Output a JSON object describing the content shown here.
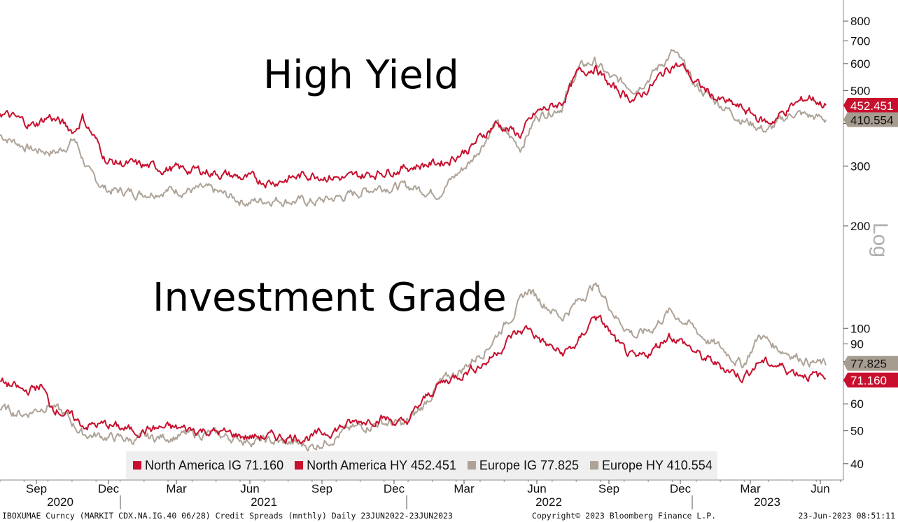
{
  "titles": {
    "hy": "High Yield",
    "ig": "Investment Grade"
  },
  "legend": [
    {
      "label": "North America IG 71.160",
      "color": "#c8102e"
    },
    {
      "label": "North America HY 452.451",
      "color": "#c8102e"
    },
    {
      "label": "Europe IG 77.825",
      "color": "#aea398"
    },
    {
      "label": "Europe HY 410.554",
      "color": "#aea398"
    }
  ],
  "footer": {
    "left": "IBOXUMAE Curncy (MARKIT CDX.NA.IG.40 06/28) Credit Spreads (mnthly)  Daily 23JUN2022-23JUN2023",
    "mid": "Copyright© 2023 Bloomberg Finance L.P.",
    "right": "23-Jun-2023 08:51:11"
  },
  "chart_data": {
    "type": "line",
    "y_scale": "log",
    "ylim": [
      36,
      880
    ],
    "y_axis_label": "Log",
    "y_ticks": [
      40,
      50,
      60,
      70,
      80,
      90,
      100,
      200,
      300,
      400,
      500,
      600,
      700,
      800
    ],
    "y_tick_labels": [
      "40",
      "50",
      "60",
      "",
      "",
      "90",
      "100",
      "200",
      "300",
      "",
      "500",
      "600",
      "700",
      "800"
    ],
    "x_month_ticks": [
      "Sep",
      "Dec",
      "Mar",
      "Jun",
      "Sep",
      "Dec",
      "Mar",
      "Jun",
      "Sep",
      "Dec",
      "Mar",
      "Jun"
    ],
    "x_year_labels": [
      "2020",
      "2021",
      "2022",
      "2023"
    ],
    "last_value_labels": [
      {
        "text": "452.451",
        "value": 452.451,
        "color": "#c8102e"
      },
      {
        "text": "410.554",
        "value": 410.554,
        "color": "#a79c90"
      },
      {
        "text": "77.825",
        "value": 77.825,
        "color": "#a79c90"
      },
      {
        "text": "71.160",
        "value": 71.16,
        "color": "#c8102e"
      }
    ],
    "series": [
      {
        "name": "North America HY",
        "color": "#c8102e",
        "anchors": [
          [
            0,
            430
          ],
          [
            0.04,
            395
          ],
          [
            0.06,
            420
          ],
          [
            0.09,
            380
          ],
          [
            0.1,
            418
          ],
          [
            0.13,
            310
          ],
          [
            0.17,
            300
          ],
          [
            0.2,
            295
          ],
          [
            0.25,
            290
          ],
          [
            0.3,
            275
          ],
          [
            0.33,
            270
          ],
          [
            0.38,
            285
          ],
          [
            0.42,
            275
          ],
          [
            0.46,
            288
          ],
          [
            0.5,
            300
          ],
          [
            0.54,
            310
          ],
          [
            0.57,
            340
          ],
          [
            0.6,
            400
          ],
          [
            0.63,
            370
          ],
          [
            0.65,
            430
          ],
          [
            0.68,
            460
          ],
          [
            0.7,
            560
          ],
          [
            0.72,
            590
          ],
          [
            0.74,
            510
          ],
          [
            0.77,
            470
          ],
          [
            0.79,
            520
          ],
          [
            0.815,
            600
          ],
          [
            0.83,
            580
          ],
          [
            0.84,
            530
          ],
          [
            0.87,
            470
          ],
          [
            0.9,
            440
          ],
          [
            0.93,
            400
          ],
          [
            0.96,
            450
          ],
          [
            0.98,
            480
          ],
          [
            1.0,
            452.451
          ]
        ]
      },
      {
        "name": "Europe HY",
        "color": "#aea398",
        "anchors": [
          [
            0,
            370
          ],
          [
            0.04,
            335
          ],
          [
            0.07,
            330
          ],
          [
            0.09,
            360
          ],
          [
            0.11,
            280
          ],
          [
            0.13,
            255
          ],
          [
            0.17,
            250
          ],
          [
            0.2,
            255
          ],
          [
            0.25,
            255
          ],
          [
            0.3,
            235
          ],
          [
            0.33,
            240
          ],
          [
            0.38,
            235
          ],
          [
            0.42,
            245
          ],
          [
            0.46,
            262
          ],
          [
            0.5,
            260
          ],
          [
            0.53,
            250
          ],
          [
            0.57,
            310
          ],
          [
            0.6,
            400
          ],
          [
            0.63,
            340
          ],
          [
            0.65,
            420
          ],
          [
            0.68,
            450
          ],
          [
            0.7,
            580
          ],
          [
            0.72,
            610
          ],
          [
            0.74,
            540
          ],
          [
            0.77,
            510
          ],
          [
            0.79,
            560
          ],
          [
            0.815,
            650
          ],
          [
            0.83,
            580
          ],
          [
            0.84,
            520
          ],
          [
            0.87,
            460
          ],
          [
            0.9,
            410
          ],
          [
            0.93,
            380
          ],
          [
            0.96,
            430
          ],
          [
            0.98,
            420
          ],
          [
            1.0,
            410.554
          ]
        ]
      },
      {
        "name": "North America IG",
        "color": "#c8102e",
        "anchors": [
          [
            0,
            70
          ],
          [
            0.03,
            65
          ],
          [
            0.05,
            68
          ],
          [
            0.06,
            60
          ],
          [
            0.08,
            56
          ],
          [
            0.1,
            52
          ],
          [
            0.13,
            52
          ],
          [
            0.16,
            50
          ],
          [
            0.2,
            51
          ],
          [
            0.25,
            50
          ],
          [
            0.3,
            48
          ],
          [
            0.35,
            48
          ],
          [
            0.38,
            48
          ],
          [
            0.42,
            52
          ],
          [
            0.46,
            55
          ],
          [
            0.49,
            52
          ],
          [
            0.51,
            60
          ],
          [
            0.53,
            68
          ],
          [
            0.56,
            74
          ],
          [
            0.59,
            80
          ],
          [
            0.62,
            95
          ],
          [
            0.64,
            100
          ],
          [
            0.66,
            90
          ],
          [
            0.68,
            84
          ],
          [
            0.7,
            90
          ],
          [
            0.72,
            110
          ],
          [
            0.735,
            100
          ],
          [
            0.75,
            88
          ],
          [
            0.77,
            80
          ],
          [
            0.79,
            86
          ],
          [
            0.81,
            96
          ],
          [
            0.83,
            90
          ],
          [
            0.85,
            82
          ],
          [
            0.88,
            76
          ],
          [
            0.9,
            72
          ],
          [
            0.92,
            80
          ],
          [
            0.94,
            78
          ],
          [
            0.96,
            75
          ],
          [
            0.98,
            73
          ],
          [
            1.0,
            71.16
          ]
        ]
      },
      {
        "name": "Europe IG",
        "color": "#aea398",
        "anchors": [
          [
            0,
            58
          ],
          [
            0.03,
            56
          ],
          [
            0.06,
            60
          ],
          [
            0.08,
            55
          ],
          [
            0.1,
            49
          ],
          [
            0.13,
            48
          ],
          [
            0.16,
            47
          ],
          [
            0.2,
            48
          ],
          [
            0.25,
            49
          ],
          [
            0.3,
            47
          ],
          [
            0.35,
            46
          ],
          [
            0.38,
            45
          ],
          [
            0.42,
            50
          ],
          [
            0.46,
            53
          ],
          [
            0.49,
            52
          ],
          [
            0.51,
            58
          ],
          [
            0.53,
            68
          ],
          [
            0.56,
            76
          ],
          [
            0.59,
            88
          ],
          [
            0.62,
            110
          ],
          [
            0.64,
            130
          ],
          [
            0.66,
            118
          ],
          [
            0.68,
            108
          ],
          [
            0.7,
            120
          ],
          [
            0.72,
            135
          ],
          [
            0.735,
            120
          ],
          [
            0.75,
            105
          ],
          [
            0.77,
            95
          ],
          [
            0.79,
            100
          ],
          [
            0.81,
            112
          ],
          [
            0.83,
            105
          ],
          [
            0.85,
            95
          ],
          [
            0.88,
            85
          ],
          [
            0.9,
            78
          ],
          [
            0.92,
            96
          ],
          [
            0.94,
            88
          ],
          [
            0.96,
            84
          ],
          [
            0.98,
            80
          ],
          [
            1.0,
            77.825
          ]
        ]
      }
    ]
  }
}
